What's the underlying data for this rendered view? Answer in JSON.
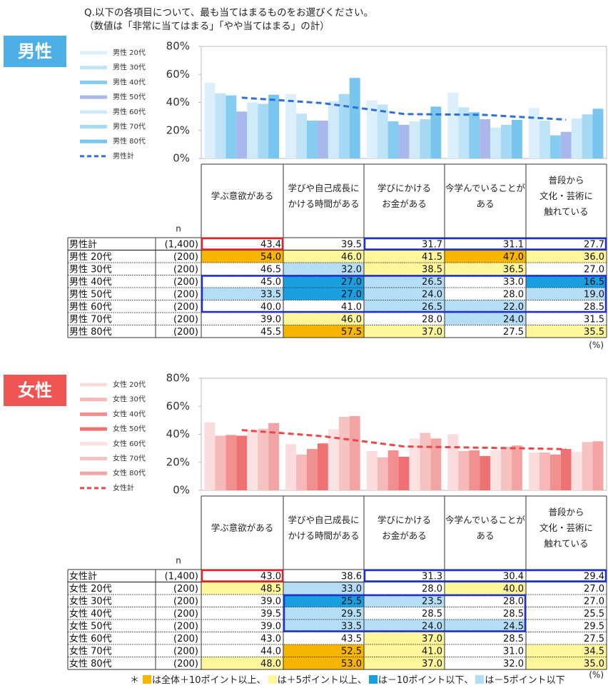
{
  "question": [
    "Q.以下の各項目について、最も当てはまるものをお選びください。",
    "（数値は「非常に当てはまる」「やや当てはまる」の計）"
  ],
  "unit": "(%)",
  "footnote_mark": "＊",
  "highlight_legend": [
    {
      "color": "#f8b500",
      "label": "は全体＋10ポイント以上、",
      "threshold": 10
    },
    {
      "color": "#fff799",
      "label": "は＋5ポイント以上、",
      "threshold": 5
    },
    {
      "color": "#1a9fe0",
      "label": "は－10ポイント以下、",
      "threshold": -10
    },
    {
      "color": "#b5ddf5",
      "label": "は－5ポイント以下",
      "threshold": -5
    }
  ],
  "chart_data": [
    {
      "type": "bar",
      "badge": "男性",
      "badge_color": "#4eaee6",
      "n_header": "n",
      "categories": [
        "学ぶ意欲がある",
        "学びや自己成長に\nかける時間がある",
        "学びにかける\nお金がある",
        "今学んでいることが\nある",
        "普段から\n文化・芸術に\n触れている"
      ],
      "ylim": [
        0,
        80
      ],
      "yticks": [
        {
          "value": 0,
          "label": "0%"
        },
        {
          "value": 20,
          "label": "20%"
        },
        {
          "value": 40,
          "label": "40%"
        },
        {
          "value": 60,
          "label": "60%"
        },
        {
          "value": 80,
          "label": "80%"
        }
      ],
      "series": [
        {
          "name": "男性 20代",
          "n": "(200)",
          "color": "#dcf0fb",
          "values": [
            54,
            46,
            41.5,
            47,
            36
          ],
          "value_labels": [
            "54.0",
            "46.0",
            "41.5",
            "47.0",
            "36.0"
          ]
        },
        {
          "name": "男性 30代",
          "n": "(200)",
          "color": "#bfe3f7",
          "values": [
            46.5,
            32,
            38.5,
            36.5,
            27
          ],
          "value_labels": [
            "46.5",
            "32.0",
            "38.5",
            "36.5",
            "27.0"
          ]
        },
        {
          "name": "男性 40代",
          "n": "(200)",
          "color": "#85cdf0",
          "values": [
            45,
            27,
            26.5,
            33,
            16.5
          ],
          "value_labels": [
            "45.0",
            "27.0",
            "26.5",
            "33.0",
            "16.5"
          ]
        },
        {
          "name": "男性 50代",
          "n": "(200)",
          "color": "#a9b7ea",
          "values": [
            33.5,
            27,
            24,
            28,
            19
          ],
          "value_labels": [
            "33.5",
            "27.0",
            "24.0",
            "28.0",
            "19.0"
          ]
        },
        {
          "name": "男性 60代",
          "n": "(200)",
          "color": "#cfebf9",
          "values": [
            40,
            41,
            26.5,
            22,
            28.5
          ],
          "value_labels": [
            "40.0",
            "41.0",
            "26.5",
            "22.0",
            "28.5"
          ]
        },
        {
          "name": "男性 70代",
          "n": "(200)",
          "color": "#a6daf4",
          "values": [
            39,
            46,
            28,
            24,
            31.5
          ],
          "value_labels": [
            "39.0",
            "46.0",
            "28.0",
            "24.0",
            "31.5"
          ]
        },
        {
          "name": "男性 80代",
          "n": "(200)",
          "color": "#78c5ed",
          "values": [
            45.5,
            57.5,
            37,
            27.5,
            35.5
          ],
          "value_labels": [
            "45.5",
            "57.5",
            "37.0",
            "27.5",
            "35.5"
          ]
        },
        {
          "name": "男性計",
          "n": "(1,400)",
          "type": "line",
          "dashed": true,
          "color": "#2f6fd6",
          "values": [
            43.4,
            39.5,
            31.7,
            31.1,
            27.7
          ],
          "value_labels": [
            "43.4",
            "39.5",
            "31.7",
            "31.1",
            "27.7"
          ]
        }
      ]
    },
    {
      "type": "bar",
      "badge": "女性",
      "badge_color": "#ef5552",
      "n_header": "n",
      "categories": [
        "学ぶ意欲がある",
        "学びや自己成長に\nかける時間がある",
        "学びにかける\nお金がある",
        "今学んでいることが\nある",
        "普段から\n文化・芸術に\n触れている"
      ],
      "ylim": [
        0,
        80
      ],
      "yticks": [
        {
          "value": 0,
          "label": "0%"
        },
        {
          "value": 20,
          "label": "20%"
        },
        {
          "value": 40,
          "label": "40%"
        },
        {
          "value": 60,
          "label": "60%"
        },
        {
          "value": 80,
          "label": "80%"
        }
      ],
      "series": [
        {
          "name": "女性 20代",
          "n": "(200)",
          "color": "#fbdcdc",
          "values": [
            48.5,
            33,
            28,
            40,
            27
          ],
          "value_labels": [
            "48.5",
            "33.0",
            "28.0",
            "40.0",
            "27.0"
          ]
        },
        {
          "name": "女性 30代",
          "n": "(200)",
          "color": "#f6b8b8",
          "values": [
            39,
            25.5,
            23.5,
            28,
            27
          ],
          "value_labels": [
            "39.0",
            "25.5",
            "23.5",
            "28.0",
            "27.0"
          ]
        },
        {
          "name": "女性 40代",
          "n": "(200)",
          "color": "#f29090",
          "values": [
            39.5,
            29.5,
            28.5,
            28.5,
            25.5
          ],
          "value_labels": [
            "39.5",
            "29.5",
            "28.5",
            "28.5",
            "25.5"
          ]
        },
        {
          "name": "女性 50代",
          "n": "(200)",
          "color": "#ee7272",
          "values": [
            39,
            33.5,
            24,
            24.5,
            29.5
          ],
          "value_labels": [
            "39.0",
            "33.5",
            "24.0",
            "24.5",
            "29.5"
          ]
        },
        {
          "name": "女性 60代",
          "n": "(200)",
          "color": "#fbe2e2",
          "values": [
            43,
            43.5,
            37,
            28.5,
            27.5
          ],
          "value_labels": [
            "43.0",
            "43.5",
            "37.0",
            "28.5",
            "27.5"
          ]
        },
        {
          "name": "女性 70代",
          "n": "(200)",
          "color": "#f7c2c2",
          "values": [
            44,
            52.5,
            41,
            31,
            34.5
          ],
          "value_labels": [
            "44.0",
            "52.5",
            "41.0",
            "31.0",
            "34.5"
          ]
        },
        {
          "name": "女性 80代",
          "n": "(200)",
          "color": "#f3a5a5",
          "values": [
            48,
            53,
            37,
            32,
            35
          ],
          "value_labels": [
            "48.0",
            "53.0",
            "37.0",
            "32.0",
            "35.0"
          ]
        },
        {
          "name": "女性計",
          "n": "(1,400)",
          "type": "line",
          "dashed": true,
          "color": "#e8484a",
          "values": [
            43,
            38.6,
            31.3,
            30.4,
            29.4
          ],
          "value_labels": [
            "43.0",
            "38.6",
            "31.3",
            "30.4",
            "29.4"
          ]
        }
      ]
    }
  ]
}
